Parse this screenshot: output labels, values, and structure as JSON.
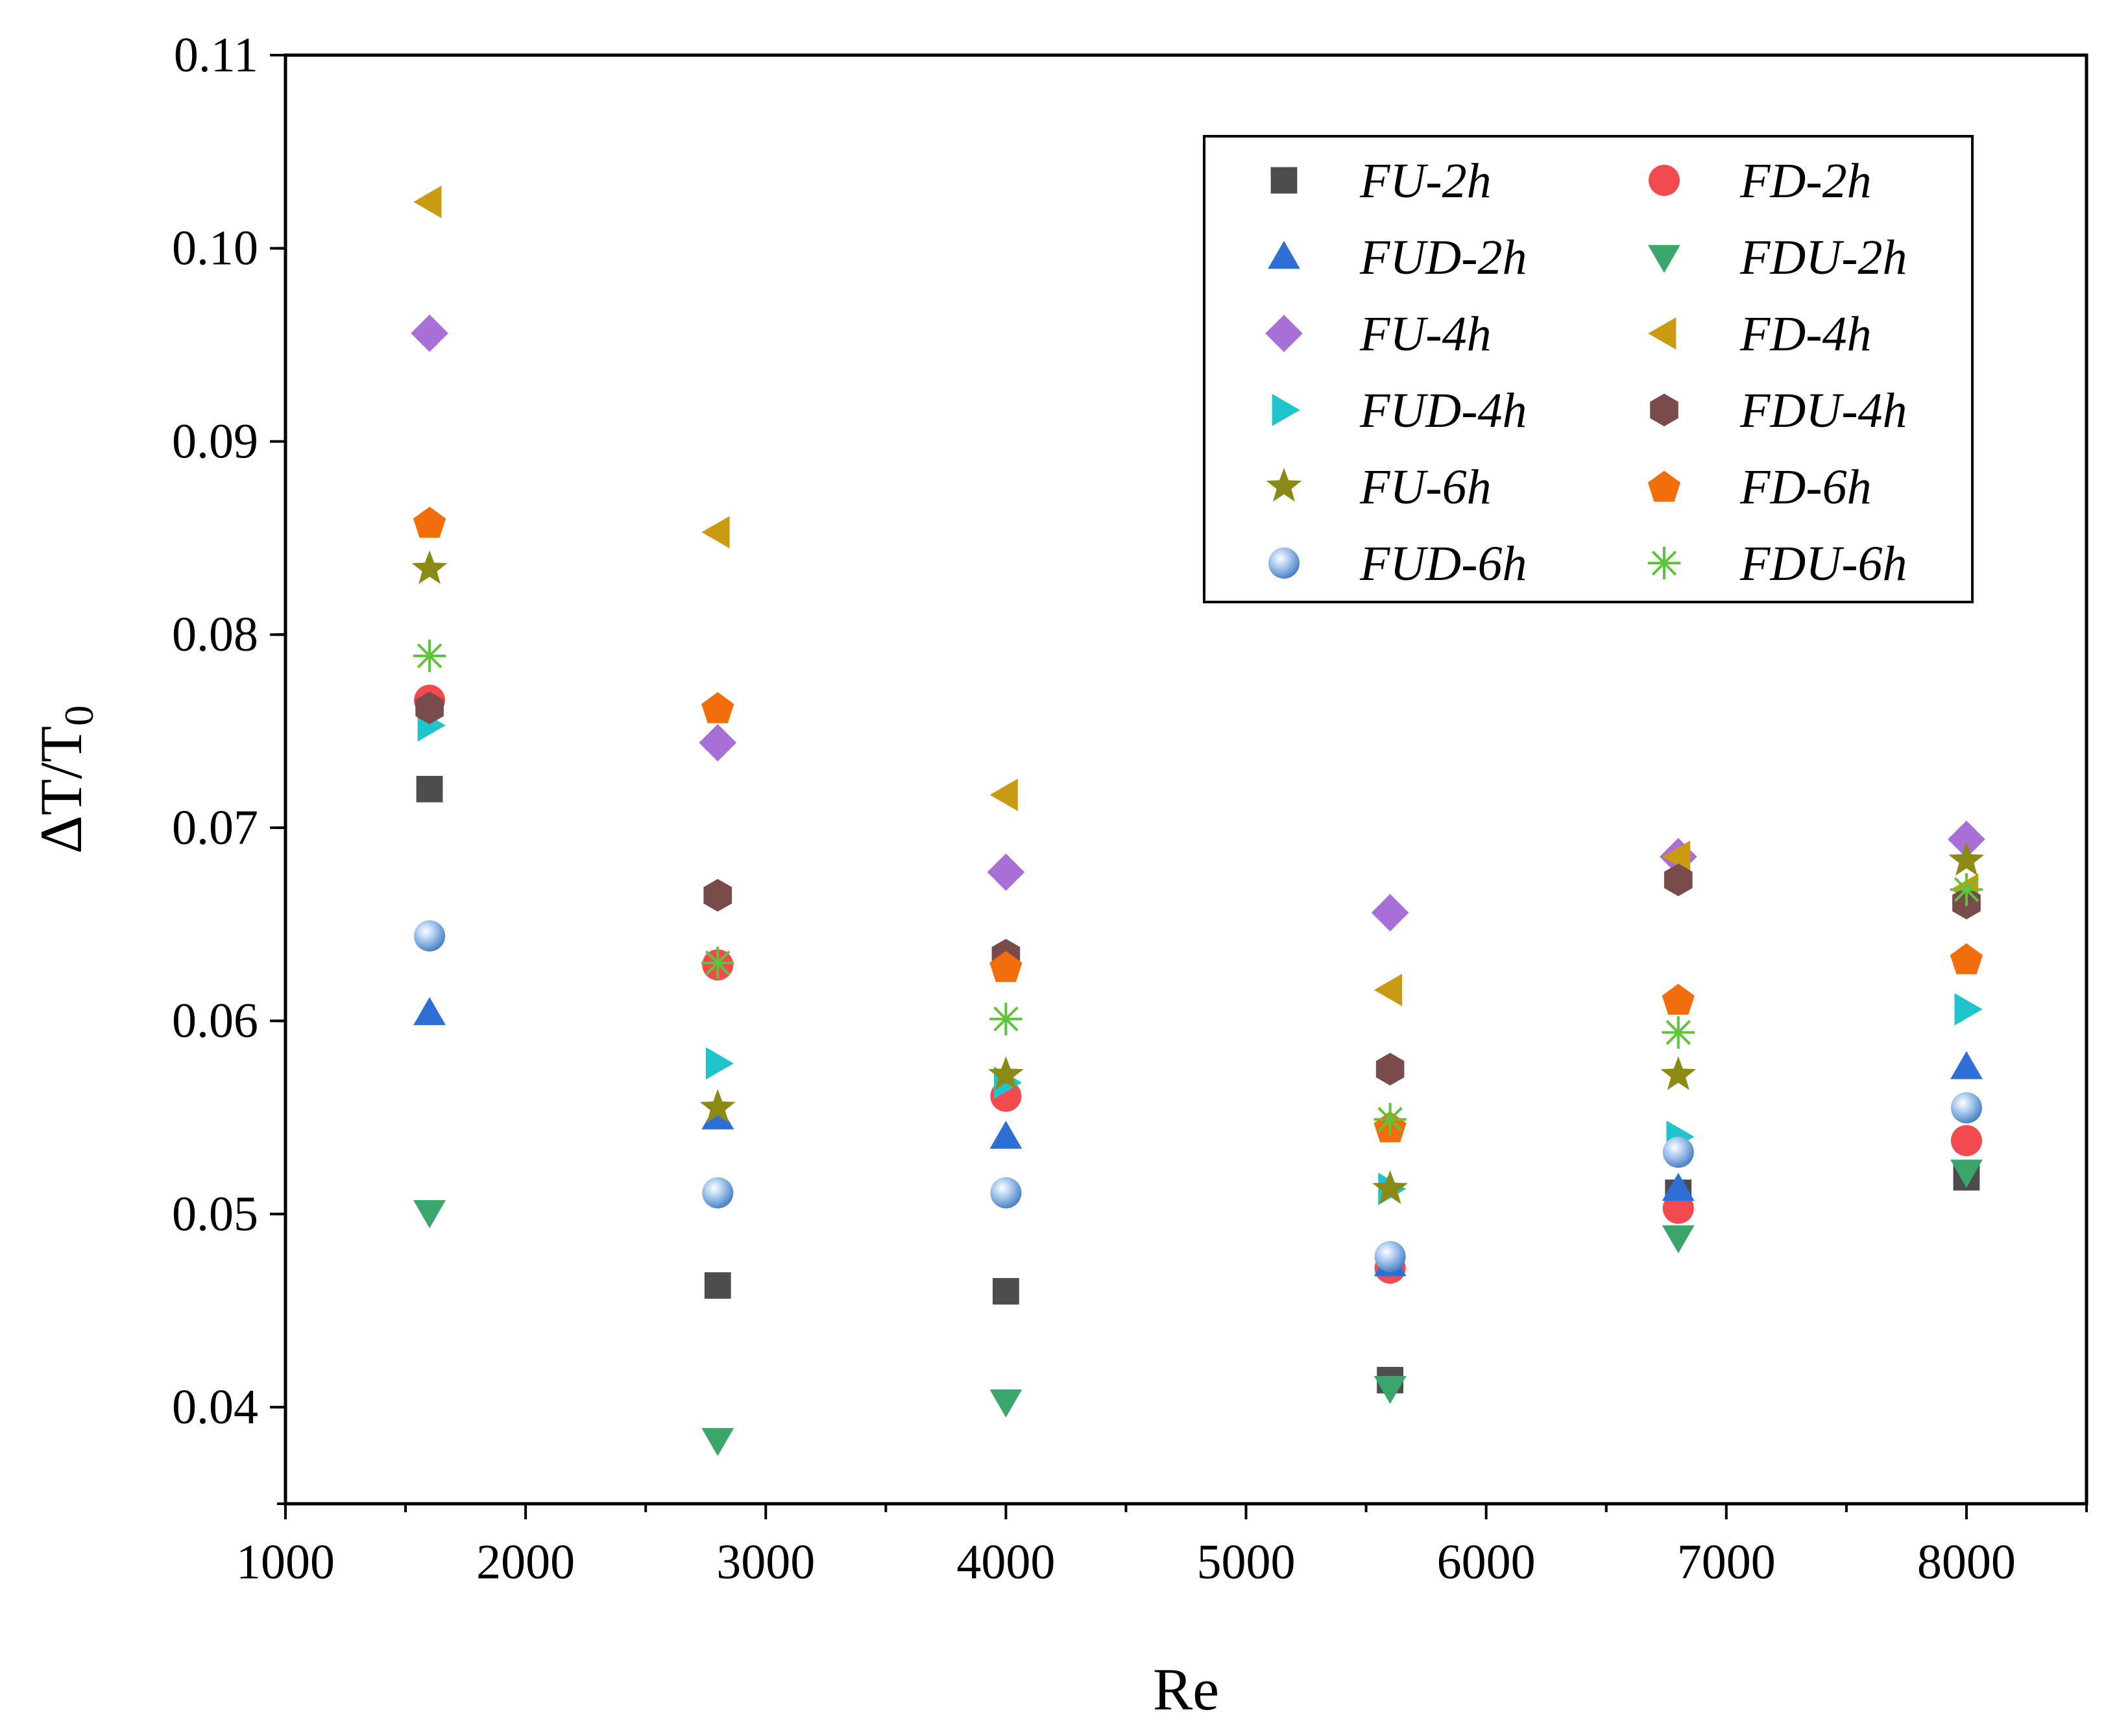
{
  "chart_data": {
    "type": "scatter",
    "xlabel": "Re",
    "ylabel_main": "ΔT/T",
    "ylabel_sub": "0",
    "xlim": [
      1000,
      8500
    ],
    "ylim": [
      0.035,
      0.11
    ],
    "x_ticks": [
      1000,
      2000,
      3000,
      4000,
      5000,
      6000,
      7000,
      8000
    ],
    "x_tick_labels": [
      "1000",
      "2000",
      "3000",
      "4000",
      "5000",
      "6000",
      "7000",
      "8000"
    ],
    "y_ticks": [
      0.04,
      0.05,
      0.06,
      0.07,
      0.08,
      0.09,
      0.1,
      0.11
    ],
    "y_tick_labels": [
      "0.04",
      "0.05",
      "0.06",
      "0.07",
      "0.08",
      "0.09",
      "0.10",
      "0.11"
    ],
    "grid": false,
    "legend_position": "top-right",
    "x": [
      1600,
      2800,
      4000,
      5600,
      6800,
      8000
    ],
    "series": [
      {
        "name": "FU-2h",
        "marker": "square",
        "color": "#4d4d4d",
        "values": [
          0.072,
          0.0463,
          0.046,
          0.0414,
          0.0511,
          0.0519
        ]
      },
      {
        "name": "FD-2h",
        "marker": "circle",
        "color": "#f24a4f",
        "values": [
          0.0766,
          0.0629,
          0.0561,
          0.0472,
          0.0503,
          0.0538
        ]
      },
      {
        "name": "FUD-2h",
        "marker": "triangle-up",
        "color": "#2e6fd6",
        "values": [
          0.0604,
          0.055,
          0.054,
          0.0474,
          0.0513,
          0.0576
        ]
      },
      {
        "name": "FDU-2h",
        "marker": "triangle-down",
        "color": "#3aa66b",
        "values": [
          0.0501,
          0.0383,
          0.0403,
          0.041,
          0.0488,
          0.0522
        ]
      },
      {
        "name": "FU-4h",
        "marker": "diamond",
        "color": "#a870d6",
        "values": [
          0.0956,
          0.0744,
          0.0677,
          0.0656,
          0.0685,
          0.0694
        ]
      },
      {
        "name": "FD-4h",
        "marker": "triangle-left",
        "color": "#c99a12",
        "values": [
          0.1024,
          0.0853,
          0.0717,
          0.0616,
          0.0685,
          0.0668
        ]
      },
      {
        "name": "FUD-4h",
        "marker": "triangle-right",
        "color": "#20c4cc",
        "values": [
          0.0753,
          0.0578,
          0.0568,
          0.0513,
          0.054,
          0.0606
        ]
      },
      {
        "name": "FDU-4h",
        "marker": "hexagon",
        "color": "#7a4b4b",
        "values": [
          0.0762,
          0.0665,
          0.0634,
          0.0575,
          0.0673,
          0.0661
        ]
      },
      {
        "name": "FU-6h",
        "marker": "star",
        "color": "#8a8a14",
        "values": [
          0.0834,
          0.0555,
          0.0572,
          0.0513,
          0.0572,
          0.0683
        ]
      },
      {
        "name": "FD-6h",
        "marker": "pentagon",
        "color": "#f26d0c",
        "values": [
          0.0858,
          0.0762,
          0.0628,
          0.0545,
          0.0611,
          0.0632
        ]
      },
      {
        "name": "FUD-6h",
        "marker": "sphere",
        "color": "#6fa0d8",
        "values": [
          0.0644,
          0.0511,
          0.0511,
          0.0478,
          0.0532,
          0.0555
        ]
      },
      {
        "name": "FDU-6h",
        "marker": "asterisk",
        "color": "#5ec43a",
        "values": [
          0.0789,
          0.063,
          0.0601,
          0.0549,
          0.0594,
          0.0668
        ]
      }
    ]
  }
}
